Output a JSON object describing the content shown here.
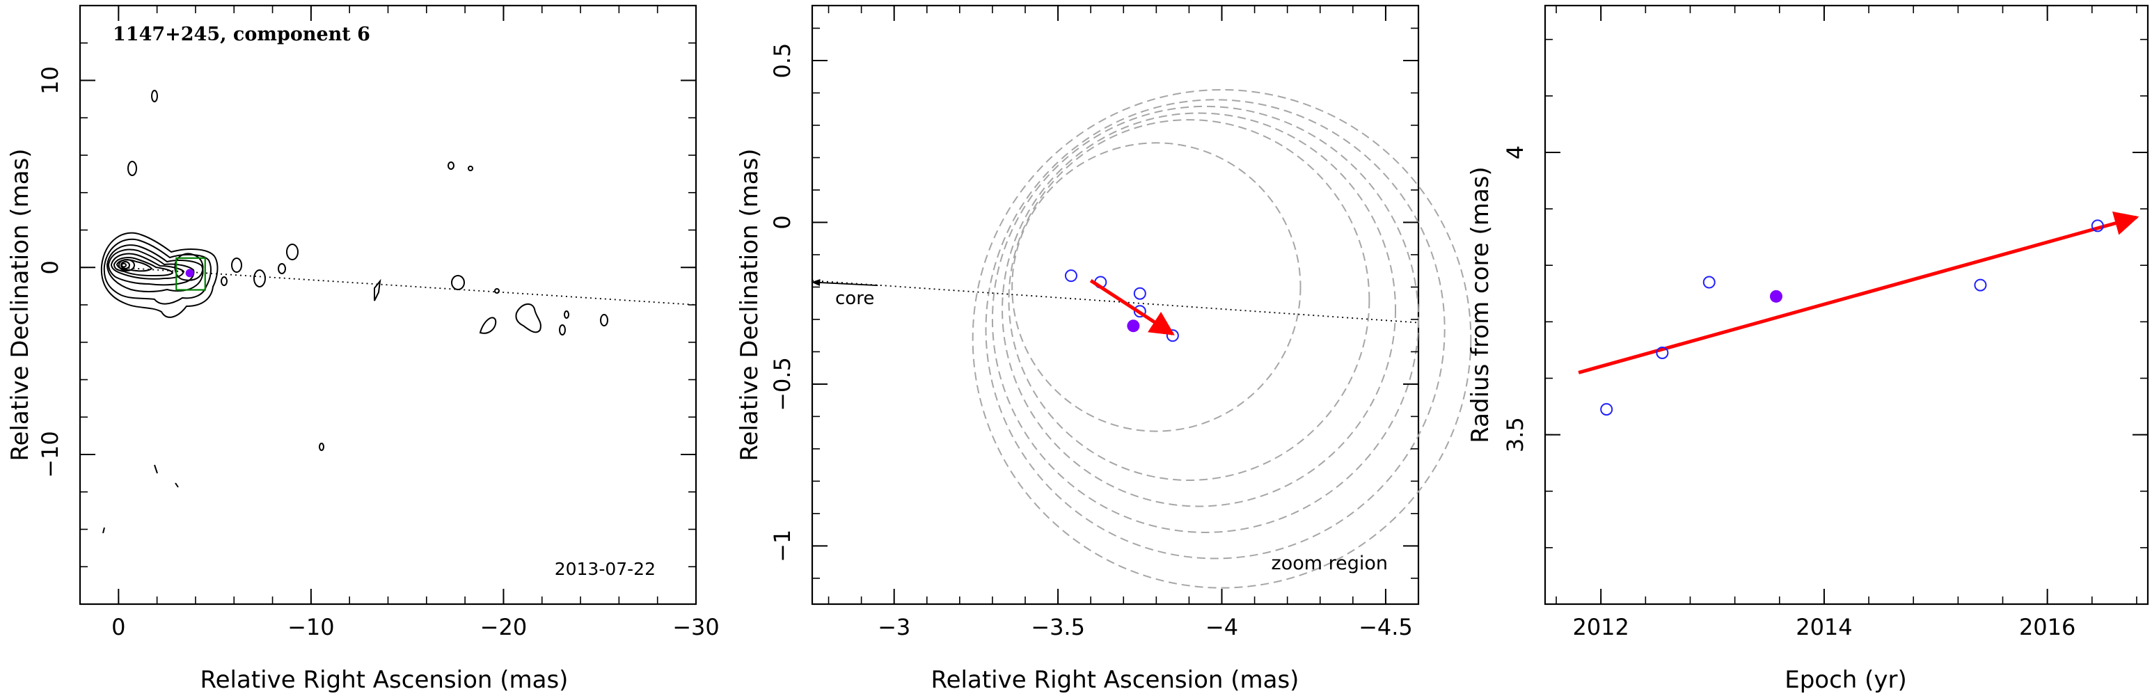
{
  "chart_data": [
    {
      "type": "contour",
      "title": "1147+245, component 6",
      "date_label": "2013-07-22",
      "xlabel": "Relative Right Ascension (mas)",
      "ylabel": "Relative Declination (mas)",
      "xlim": [
        2,
        -30
      ],
      "ylim": [
        -18,
        14
      ],
      "xticks": [
        0,
        -10,
        -20,
        -30
      ],
      "xtick_labels": [
        "0",
        "−10",
        "−20",
        "−30"
      ],
      "yticks": [
        -10,
        0,
        10
      ],
      "ytick_labels": [
        "−10",
        "0",
        "10"
      ],
      "ridge_line": {
        "x": [
          0,
          -30
        ],
        "y": [
          0,
          -2
        ]
      },
      "zoom_box": {
        "x": [
          -3,
          -4.5
        ],
        "y": [
          0.5,
          -1.2
        ]
      },
      "component_marker": {
        "x": -3.7,
        "y": -0.3
      }
    },
    {
      "type": "scatter",
      "title": "",
      "xlabel": "Relative Right Ascension (mas)",
      "ylabel": "Relative Declination (mas)",
      "xlim": [
        -2.75,
        -4.6
      ],
      "ylim": [
        -1.18,
        0.67
      ],
      "xticks": [
        -3,
        -3.5,
        -4,
        -4.5
      ],
      "xtick_labels": [
        "−3",
        "−3.5",
        "−4",
        "−4.5"
      ],
      "yticks": [
        -1,
        -0.5,
        0,
        0.5
      ],
      "ytick_labels": [
        "−1",
        "−0.5",
        "0",
        "0.5"
      ],
      "annotations": {
        "core": "core",
        "zoom_region": "zoom region"
      },
      "open_points": [
        {
          "x": -3.54,
          "y": -0.165
        },
        {
          "x": -3.63,
          "y": -0.185
        },
        {
          "x": -3.75,
          "y": -0.22
        },
        {
          "x": -3.75,
          "y": -0.275
        },
        {
          "x": -3.85,
          "y": -0.35
        }
      ],
      "filled_point": {
        "x": -3.73,
        "y": -0.32
      },
      "motion_vector": {
        "x": [
          -3.6,
          -3.85
        ],
        "y": [
          -0.18,
          -0.345
        ]
      },
      "ridge_line": {
        "x": [
          -2.75,
          -4.6
        ],
        "y": [
          -0.18,
          -0.31
        ]
      },
      "core_arrow": {
        "x": [
          -2.95,
          -2.75
        ],
        "y": [
          -0.195,
          -0.185
        ]
      },
      "beam_circles": [
        {
          "cx": -3.8,
          "cy": -0.2,
          "r": 0.44
        },
        {
          "cx": -3.9,
          "cy": -0.24,
          "r": 0.55
        },
        {
          "cx": -3.93,
          "cy": -0.27,
          "r": 0.6
        },
        {
          "cx": -3.95,
          "cy": -0.3,
          "r": 0.65
        },
        {
          "cx": -3.98,
          "cy": -0.33,
          "r": 0.7
        },
        {
          "cx": -4.0,
          "cy": -0.36,
          "r": 0.76
        }
      ]
    },
    {
      "type": "scatter",
      "title": "",
      "xlabel": "Epoch (yr)",
      "ylabel": "Radius from core (mas)",
      "xlim": [
        2011.5,
        2016.9
      ],
      "ylim": [
        3.2,
        4.26
      ],
      "xticks": [
        2012,
        2014,
        2016
      ],
      "xtick_labels": [
        "2012",
        "2014",
        "2016"
      ],
      "yticks": [
        3.5,
        4
      ],
      "ytick_labels": [
        "3.5",
        "4"
      ],
      "open_points": [
        {
          "x": 2012.05,
          "y": 3.545
        },
        {
          "x": 2012.55,
          "y": 3.645
        },
        {
          "x": 2012.97,
          "y": 3.77
        },
        {
          "x": 2015.4,
          "y": 3.765
        },
        {
          "x": 2016.45,
          "y": 3.87
        }
      ],
      "filled_point": {
        "x": 2013.57,
        "y": 3.745
      },
      "trend": {
        "x": [
          2011.8,
          2016.8
        ],
        "y": [
          3.61,
          3.885
        ]
      }
    }
  ]
}
